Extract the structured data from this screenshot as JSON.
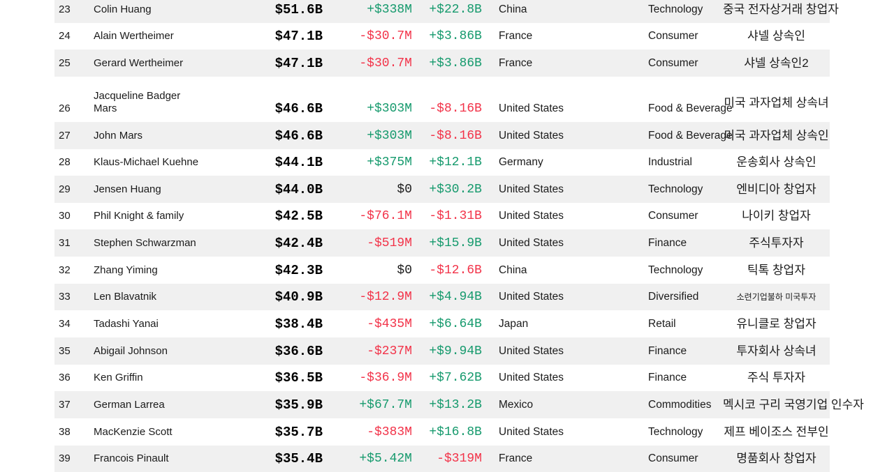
{
  "colors": {
    "positive_change": "#169a6d",
    "negative_change": "#f23349",
    "row_stripe": "#f0f0f0",
    "text": "#1b1b1b"
  },
  "table": {
    "rows": [
      {
        "rank": "23",
        "name": "Colin Huang",
        "net_worth": "$51.6B",
        "daily_change": "+$338M",
        "ytd_change": "+$22.8B",
        "country": "China",
        "industry": "Technology",
        "note": "중국 전자상거래 창업자"
      },
      {
        "rank": "24",
        "name": "Alain Wertheimer",
        "net_worth": "$47.1B",
        "daily_change": "-$30.7M",
        "ytd_change": "+$3.86B",
        "country": "France",
        "industry": "Consumer",
        "note": "샤넬 상속인"
      },
      {
        "rank": "25",
        "name": "Gerard Wertheimer",
        "net_worth": "$47.1B",
        "daily_change": "-$30.7M",
        "ytd_change": "+$3.86B",
        "country": "France",
        "industry": "Consumer",
        "note": "샤넬 상속인2"
      },
      {
        "rank": "26",
        "name": "Jacqueline Badger\nMars",
        "net_worth": "$46.6B",
        "daily_change": "+$303M",
        "ytd_change": "-$8.16B",
        "country": "United States",
        "industry": "Food & Beverage",
        "note": "미국 과자업체 상속녀",
        "note_raised": true
      },
      {
        "rank": "27",
        "name": "John Mars",
        "net_worth": "$46.6B",
        "daily_change": "+$303M",
        "ytd_change": "-$8.16B",
        "country": "United States",
        "industry": "Food & Beverage",
        "note": "미국 과자업체 상속인"
      },
      {
        "rank": "28",
        "name": "Klaus-Michael Kuehne",
        "net_worth": "$44.1B",
        "daily_change": "+$375M",
        "ytd_change": "+$12.1B",
        "country": "Germany",
        "industry": "Industrial",
        "note": "운송회사 상속인"
      },
      {
        "rank": "29",
        "name": "Jensen Huang",
        "net_worth": "$44.0B",
        "daily_change": "$0",
        "ytd_change": "+$30.2B",
        "country": "United States",
        "industry": "Technology",
        "note": "엔비디아 창업자"
      },
      {
        "rank": "30",
        "name": "Phil Knight & family",
        "net_worth": "$42.5B",
        "daily_change": "-$76.1M",
        "ytd_change": "-$1.31B",
        "country": "United States",
        "industry": "Consumer",
        "note": "나이키 창업자"
      },
      {
        "rank": "31",
        "name": "Stephen Schwarzman",
        "net_worth": "$42.4B",
        "daily_change": "-$519M",
        "ytd_change": "+$15.9B",
        "country": "United States",
        "industry": "Finance",
        "note": "주식투자자"
      },
      {
        "rank": "32",
        "name": "Zhang Yiming",
        "net_worth": "$42.3B",
        "daily_change": "$0",
        "ytd_change": "-$12.6B",
        "country": "China",
        "industry": "Technology",
        "note": "틱톡 창업자"
      },
      {
        "rank": "33",
        "name": "Len Blavatnik",
        "net_worth": "$40.9B",
        "daily_change": "-$12.9M",
        "ytd_change": "+$4.94B",
        "country": "United States",
        "industry": "Diversified",
        "note": "소련기업불하 미국투자",
        "note_small": true
      },
      {
        "rank": "34",
        "name": "Tadashi Yanai",
        "net_worth": "$38.4B",
        "daily_change": "-$435M",
        "ytd_change": "+$6.64B",
        "country": "Japan",
        "industry": "Retail",
        "note": "유니클로 창업자"
      },
      {
        "rank": "35",
        "name": "Abigail Johnson",
        "net_worth": "$36.6B",
        "daily_change": "-$237M",
        "ytd_change": "+$9.94B",
        "country": "United States",
        "industry": "Finance",
        "note": "투자회사 상속녀"
      },
      {
        "rank": "36",
        "name": "Ken Griffin",
        "net_worth": "$36.5B",
        "daily_change": "-$36.9M",
        "ytd_change": "+$7.62B",
        "country": "United States",
        "industry": "Finance",
        "note": "주식 투자자"
      },
      {
        "rank": "37",
        "name": "German Larrea",
        "net_worth": "$35.9B",
        "daily_change": "+$67.7M",
        "ytd_change": "+$13.2B",
        "country": "Mexico",
        "industry": "Commodities",
        "note": "멕시코 구리 국영기업 인수자"
      },
      {
        "rank": "38",
        "name": "MacKenzie Scott",
        "net_worth": "$35.7B",
        "daily_change": "-$383M",
        "ytd_change": "+$16.8B",
        "country": "United States",
        "industry": "Technology",
        "note": "제프 베이조스 전부인"
      },
      {
        "rank": "39",
        "name": "Francois Pinault",
        "net_worth": "$35.4B",
        "daily_change": "+$5.42M",
        "ytd_change": "-$319M",
        "country": "France",
        "industry": "Consumer",
        "note": "명품회사 창업자"
      }
    ]
  }
}
